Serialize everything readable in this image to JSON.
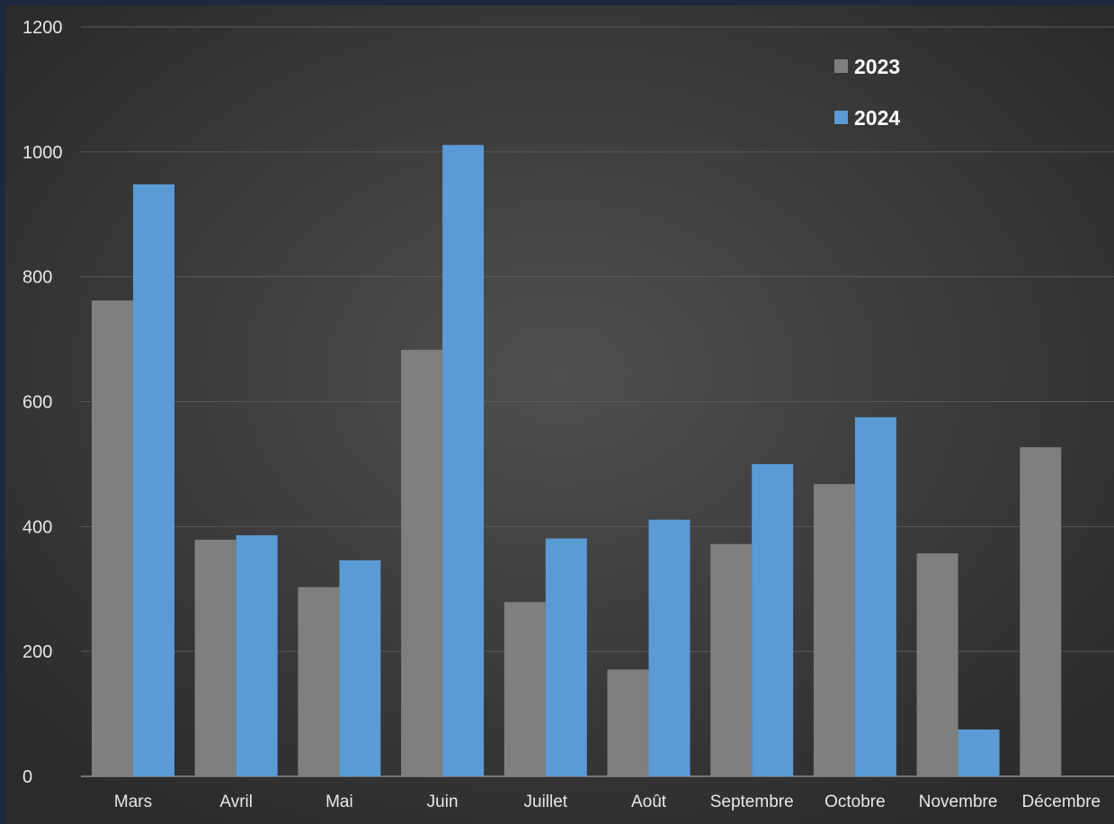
{
  "chart_data": {
    "type": "bar",
    "title": "",
    "xlabel": "",
    "ylabel": "",
    "categories": [
      "Mars",
      "Avril",
      "Mai",
      "Juin",
      "Juillet",
      "Août",
      "Septembre",
      "Octobre",
      "Novembre",
      "Décembre"
    ],
    "series": [
      {
        "name": "2023",
        "color": "#7f7f7f",
        "values": [
          762,
          379,
          303,
          683,
          279,
          171,
          372,
          468,
          357,
          527
        ]
      },
      {
        "name": "2024",
        "color": "#5b9bd5",
        "values": [
          948,
          386,
          346,
          1011,
          381,
          411,
          500,
          575,
          75,
          null
        ]
      }
    ],
    "ylim": [
      0,
      1200
    ],
    "y_ticks": [
      0,
      200,
      400,
      600,
      800,
      1000,
      1200
    ],
    "grid": true,
    "legend_position": "top-right",
    "colors": {
      "background_center": "#4f4f4f",
      "background_edge": "#2b2b2b",
      "frame": "#1d2740",
      "grid": "#5a5a5a",
      "axis": "#8c8c8c",
      "text": "#e8e8e8",
      "legend_text": "#ffffff"
    }
  }
}
